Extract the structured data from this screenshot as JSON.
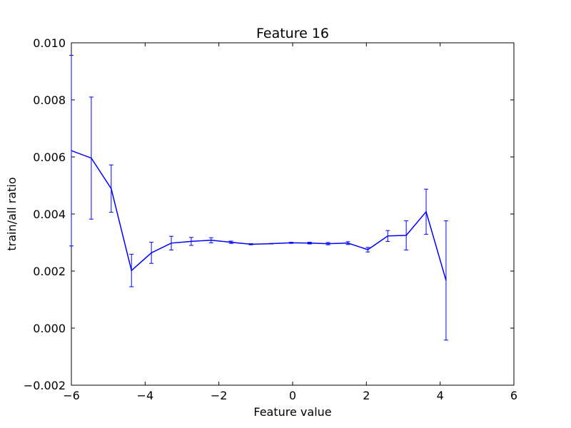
{
  "chart_data": {
    "type": "line",
    "title": "Feature 16",
    "xlabel": "Feature value",
    "ylabel": "train/all ratio",
    "xlim": [
      -6,
      6
    ],
    "ylim": [
      -0.002,
      0.01
    ],
    "xticks": [
      -6,
      -4,
      -2,
      0,
      2,
      4,
      6
    ],
    "xtick_labels": [
      "−6",
      "−4",
      "−2",
      "0",
      "2",
      "4",
      "6"
    ],
    "yticks": [
      -0.002,
      0.0,
      0.002,
      0.004,
      0.006,
      0.008,
      0.01
    ],
    "ytick_labels": [
      "−0.002",
      "0.000",
      "0.002",
      "0.004",
      "0.006",
      "0.008",
      "0.010"
    ],
    "grid": false,
    "line_color": "#0000ff",
    "series": [
      {
        "x": [
          -6.0,
          -5.46,
          -4.92,
          -4.37,
          -3.83,
          -3.29,
          -2.75,
          -2.21,
          -1.67,
          -1.13,
          -0.58,
          -0.04,
          0.46,
          0.96,
          1.5,
          2.04,
          2.58,
          3.08,
          3.62,
          4.16
        ],
        "y": [
          0.00622,
          0.00596,
          0.00489,
          0.00202,
          0.00264,
          0.00298,
          0.00304,
          0.00308,
          0.00301,
          0.00294,
          0.00296,
          0.00299,
          0.00298,
          0.00296,
          0.00298,
          0.00275,
          0.00323,
          0.00325,
          0.00408,
          0.00167
        ],
        "err": [
          0.00334,
          0.00214,
          0.00083,
          0.00057,
          0.00037,
          0.00024,
          0.00014,
          9e-05,
          4e-05,
          2e-05,
          1e-05,
          2e-05,
          3e-05,
          4e-05,
          5e-05,
          8e-05,
          0.00019,
          0.00051,
          0.00079,
          0.00209
        ]
      }
    ]
  }
}
